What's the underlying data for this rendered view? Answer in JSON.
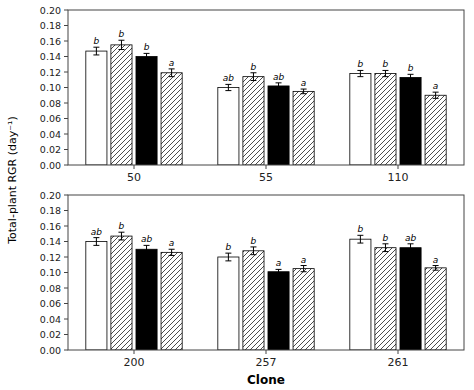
{
  "chart_data": [
    {
      "type": "bar",
      "categories": [
        "50",
        "55",
        "110"
      ],
      "series": [
        {
          "color": "white",
          "values": [
            0.147,
            0.1,
            0.118
          ],
          "errors": [
            0.005,
            0.004,
            0.004
          ],
          "annotations": [
            "b",
            "ab",
            "b"
          ]
        },
        {
          "color": "white",
          "values": [
            0.155,
            0.114,
            0.118
          ],
          "errors": [
            0.006,
            0.005,
            0.004
          ],
          "annotations": [
            "b",
            "b",
            "b"
          ]
        },
        {
          "color": "black",
          "values": [
            0.14,
            0.102,
            0.113
          ],
          "errors": [
            0.004,
            0.004,
            0.004
          ],
          "annotations": [
            "b",
            "ab",
            "b"
          ]
        },
        {
          "color": "white",
          "values": [
            0.119,
            0.095,
            0.09
          ],
          "errors": [
            0.005,
            0.003,
            0.004
          ],
          "annotations": [
            "a",
            "a",
            "a"
          ]
        }
      ],
      "y_label": "Total-plant RGR (day⁻¹)",
      "ylim": [
        0,
        0.2
      ],
      "yticks": [
        {
          "value": 0,
          "label": "0.00"
        },
        0.02,
        0.04,
        0.06,
        0.08,
        {
          "value": 0.1,
          "label": "0.10"
        },
        0.12,
        0.14,
        0.16,
        0.18,
        {
          "value": 0.2,
          "label": "0.20"
        }
      ],
      "grid": false
    },
    {
      "type": "bar",
      "categories": [
        "200",
        "257",
        "261"
      ],
      "series": [
        {
          "color": "white",
          "values": [
            0.14,
            0.12,
            0.143
          ],
          "errors": [
            0.005,
            0.005,
            0.005
          ],
          "annotations": [
            "ab",
            "b",
            "b"
          ]
        },
        {
          "color": "white",
          "values": [
            0.147,
            0.128,
            0.132
          ],
          "errors": [
            0.005,
            0.005,
            0.005
          ],
          "annotations": [
            "b",
            "b",
            "b"
          ]
        },
        {
          "color": "black",
          "values": [
            0.13,
            0.101,
            0.132
          ],
          "errors": [
            0.005,
            0.003,
            0.005
          ],
          "annotations": [
            "ab",
            "a",
            "ab"
          ]
        },
        {
          "color": "white",
          "values": [
            0.126,
            0.105,
            0.106
          ],
          "errors": [
            0.004,
            0.004,
            0.003
          ],
          "annotations": [
            "a",
            "a",
            "a"
          ]
        }
      ],
      "x_label": "Clone",
      "ylim": [
        0,
        0.2
      ],
      "yticks": [
        {
          "value": 0,
          "label": "0.00"
        },
        0.02,
        0.04,
        0.06,
        0.08,
        {
          "value": 0.1,
          "label": "0.10"
        },
        0.12,
        0.14,
        0.16,
        0.18,
        {
          "value": 0.2,
          "label": "0.20"
        }
      ],
      "grid": false
    }
  ]
}
